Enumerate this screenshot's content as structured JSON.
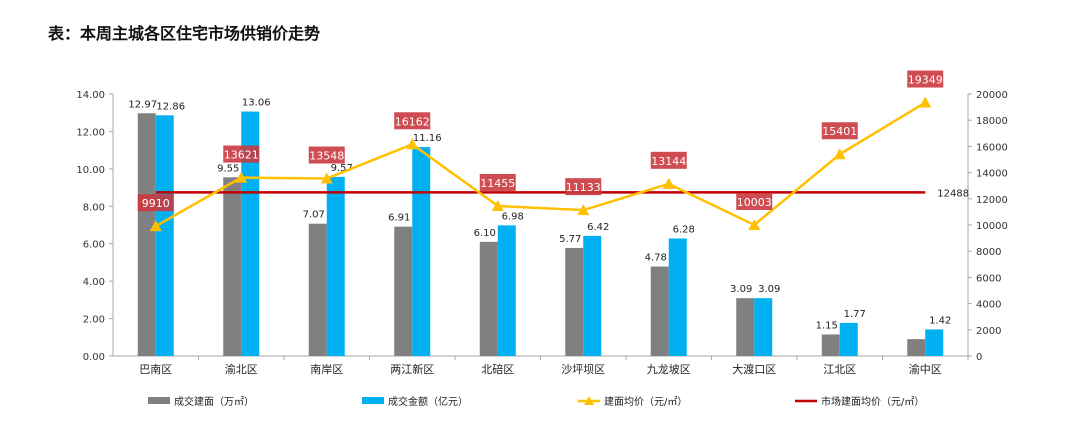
{
  "chart_data": {
    "type": "bar",
    "title": "表：本周主城各区住宅市场供销价走势",
    "categories": [
      "巴南区",
      "渝北区",
      "南岸区",
      "两江新区",
      "北碚区",
      "沙坪坝区",
      "九龙坡区",
      "大渡口区",
      "江北区",
      "渝中区"
    ],
    "series": [
      {
        "name": "成交建面（万㎡）",
        "type": "bar",
        "axis": "left",
        "color": "#808080",
        "values": [
          12.97,
          9.55,
          7.07,
          6.91,
          6.1,
          5.77,
          4.78,
          3.09,
          1.15,
          0.9
        ],
        "labels": [
          "12.97",
          "9.55",
          "7.07",
          "6.91",
          "6.10",
          "5.77",
          "4.78",
          "3.09",
          "1.15",
          ""
        ]
      },
      {
        "name": "成交金额（亿元）",
        "type": "bar",
        "axis": "left",
        "color": "#00b0f0",
        "values": [
          12.86,
          13.06,
          9.57,
          11.16,
          6.98,
          6.42,
          6.28,
          3.09,
          1.77,
          1.42
        ],
        "labels": [
          "12.86",
          "13.06",
          "9.57",
          "11.16",
          "6.98",
          "6.42",
          "6.28",
          "3.09",
          "1.77",
          "1.42"
        ]
      },
      {
        "name": "建面均价（元/㎡）",
        "type": "line",
        "axis": "right",
        "color": "#ffc000",
        "values": [
          9910,
          13621,
          13548,
          16162,
          11455,
          11133,
          13144,
          10003,
          15401,
          19349
        ]
      },
      {
        "name": "市场建面均价（元/㎡）",
        "type": "hline",
        "axis": "right",
        "color": "#c00000",
        "value": 12488,
        "label": "12488"
      }
    ],
    "y_left": {
      "range": [
        0,
        14
      ],
      "ticks": [
        "0.00",
        "2.00",
        "4.00",
        "6.00",
        "8.00",
        "10.00",
        "12.00",
        "14.00"
      ]
    },
    "y_right": {
      "range": [
        0,
        20000
      ],
      "ticks": [
        "0",
        "2000",
        "4000",
        "6000",
        "8000",
        "10000",
        "12000",
        "14000",
        "16000",
        "18000",
        "20000"
      ]
    },
    "price_label_color": "#c9393f",
    "legend_position": "bottom",
    "grid": false
  }
}
